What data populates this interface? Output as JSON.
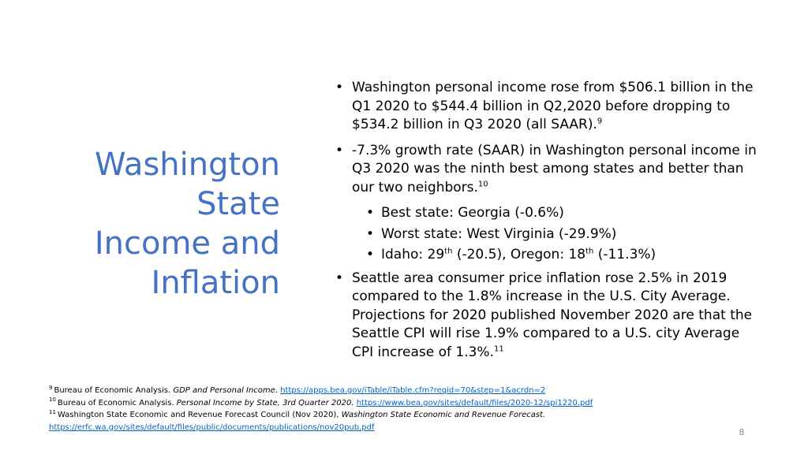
{
  "title": {
    "line1": "Washington",
    "line2": "State",
    "line3": "Income and",
    "line4": "Inflation"
  },
  "bullets": {
    "b1": {
      "text": "Washington personal income rose from $506.1 billion in the Q1 2020 to $544.4 billion in Q2,2020 before dropping to $534.2 billion in Q3 2020 (all SAAR).",
      "ref": "9"
    },
    "b2": {
      "text": "-7.3% growth rate (SAAR) in Washington personal income in Q3 2020 was the ninth best among states and better than our two neighbors.",
      "ref": "10",
      "sub1": "Best state: Georgia (-0.6%)",
      "sub2": "Worst state: West Virginia (-29.9%)",
      "sub3": {
        "p1": "Idaho: 29",
        "p1sup": "th",
        "p2": " (-20.5), Oregon: 18",
        "p2sup": "th",
        "p3": " (-11.3%)"
      }
    },
    "b3": {
      "text": "Seattle area consumer price inflation rose 2.5% in 2019 compared to the 1.8% increase in the U.S. City Average. Projections for 2020 published November 2020 are that the Seattle CPI will rise 1.9% compared to a U.S. city Average CPI increase of 1.3%.",
      "ref": "11"
    },
    "bullet_char": "•"
  },
  "footnotes": {
    "fn9": {
      "num": "9",
      "source": "Bureau of Economic Analysis. ",
      "title": "GDP and Personal Income",
      "sep": ". ",
      "url": "https://apps.bea.gov/iTable/iTable.cfm?reqid=70&step=1&acrdn=2"
    },
    "fn10": {
      "num": "10",
      "source": "Bureau of Economic Analysis. ",
      "title": "Personal Income by State, 3rd Quarter 2020.",
      "sep": " ",
      "url": "https://www.bea.gov/sites/default/files/2020-12/spi1220.pdf"
    },
    "fn11": {
      "num": "11",
      "source": "Washington State Economic and Revenue Forecast Council (Nov 2020), ",
      "title": "Washington State Economic and Revenue Forecast.",
      "url": "https://erfc.wa.gov/sites/default/files/public/documents/publications/nov20pub.pdf"
    }
  },
  "page_number": "8",
  "colors": {
    "title": "#4472c4",
    "link": "#0563c1",
    "page_number": "#8a8a8a"
  }
}
